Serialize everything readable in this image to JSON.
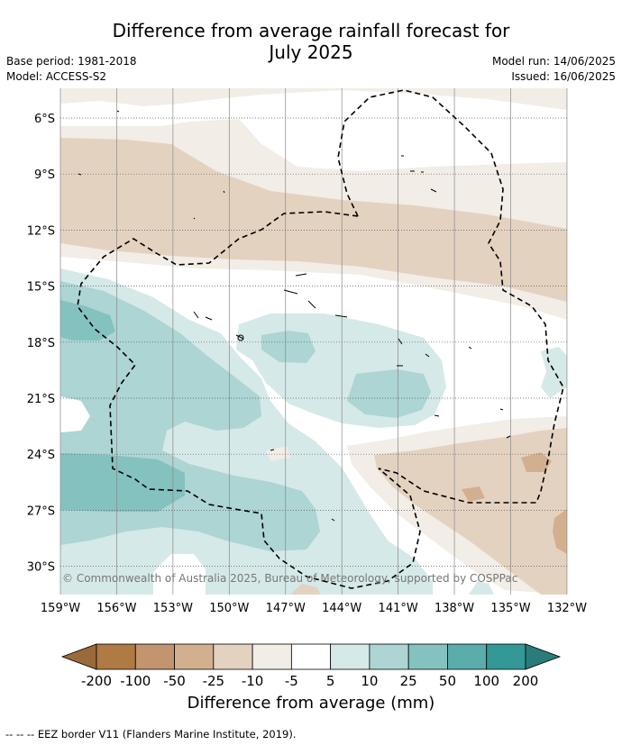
{
  "title_line1": "Difference from average rainfall forecast for",
  "title_line2": "July 2025",
  "base_period": "Base period: 1981-2018",
  "model": "Model: ACCESS-S2",
  "model_run": "Model run: 14/06/2025",
  "issued": "Issued: 16/06/2025",
  "lat_labels": [
    "6°S",
    "9°S",
    "12°S",
    "15°S",
    "18°S",
    "21°S",
    "24°S",
    "27°S",
    "30°S"
  ],
  "lon_labels": [
    "159°W",
    "156°W",
    "153°W",
    "150°W",
    "147°W",
    "144°W",
    "141°W",
    "138°W",
    "135°W",
    "132°W"
  ],
  "copyright": "© Commonwealth of Australia 2025, Bureau of Meteorology, supported by COSPPac",
  "colorbar": {
    "ticks": [
      "-200",
      "-100",
      "-50",
      "-25",
      "-10",
      "-5",
      "5",
      "10",
      "25",
      "50",
      "100",
      "200"
    ],
    "colors": [
      "#9a6a3a",
      "#b07a45",
      "#c29470",
      "#d2b08f",
      "#e4d2c0",
      "#f2ede6",
      "#ffffff",
      "#d5e9e8",
      "#acd5d4",
      "#84c2c0",
      "#5aadab",
      "#349896",
      "#2a7c7a"
    ],
    "label": "Difference from average (mm)"
  },
  "footnote": "--  --  -- EEZ border V11 (Flanders Marine Institute, 2019)."
}
